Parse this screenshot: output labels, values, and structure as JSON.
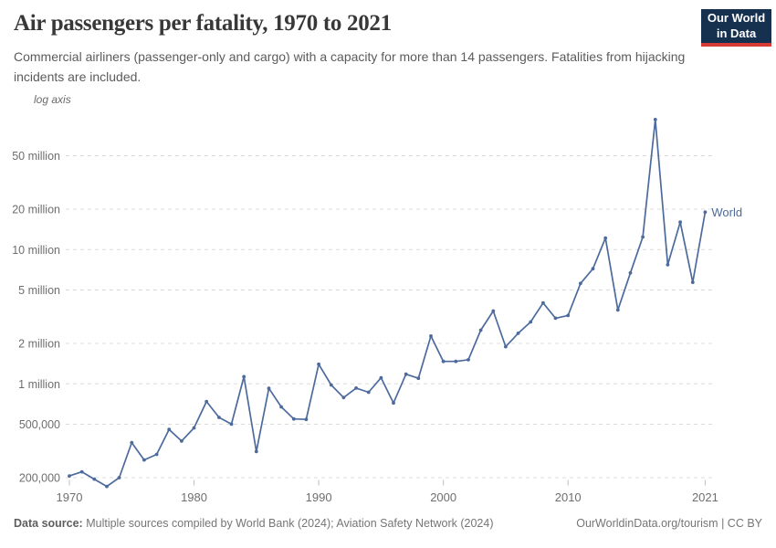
{
  "header": {
    "title": "Air passengers per fatality, 1970 to 2021",
    "subtitle": "Commercial airliners (passenger-only and cargo) with a capacity for more than 14 passengers. Fatalities from hijacking incidents are included.",
    "logo": {
      "line1": "Our World",
      "line2": "in Data"
    }
  },
  "chart": {
    "axis_note": "log axis",
    "series_label": "World",
    "line_color": "#4c6a9c",
    "gridline_color": "#dcdcdc",
    "tick_label_color": "#6e6e6e"
  },
  "chart_data": {
    "type": "line",
    "title": "Air passengers per fatality, 1970 to 2021",
    "xlabel": "",
    "ylabel": "Air passengers per fatality",
    "y_scale": "log",
    "grid": "dashed-horizontal",
    "legend_position": "end-of-line",
    "x_range": [
      1969.5,
      2022
    ],
    "y_range": [
      150000,
      100000000
    ],
    "x_ticks": [
      "1970",
      "1980",
      "1990",
      "2000",
      "2010",
      "2021"
    ],
    "y_ticks": [
      {
        "label": "200,000",
        "value": 200000
      },
      {
        "label": "500,000",
        "value": 500000
      },
      {
        "label": "1 million",
        "value": 1000000
      },
      {
        "label": "2 million",
        "value": 2000000
      },
      {
        "label": "5 million",
        "value": 5000000
      },
      {
        "label": "10 million",
        "value": 10000000
      },
      {
        "label": "20 million",
        "value": 20000000
      },
      {
        "label": "50 million",
        "value": 50000000
      }
    ],
    "x": [
      1970,
      1971,
      1972,
      1973,
      1974,
      1975,
      1976,
      1977,
      1978,
      1979,
      1980,
      1981,
      1982,
      1983,
      1984,
      1985,
      1986,
      1987,
      1988,
      1989,
      1990,
      1991,
      1992,
      1993,
      1994,
      1995,
      1996,
      1997,
      1998,
      1999,
      2000,
      2001,
      2002,
      2003,
      2004,
      2005,
      2006,
      2007,
      2008,
      2009,
      2010,
      2011,
      2012,
      2013,
      2014,
      2015,
      2016,
      2017,
      2018,
      2019,
      2020,
      2021
    ],
    "series": [
      {
        "name": "World",
        "values": [
          206000,
          221000,
          195000,
          172000,
          200000,
          365000,
          271000,
          298000,
          457000,
          375000,
          470000,
          738000,
          562000,
          501000,
          1130000,
          313000,
          925000,
          673000,
          548000,
          543000,
          1400000,
          980000,
          790000,
          930000,
          865000,
          1110000,
          720000,
          1180000,
          1100000,
          2270000,
          1470000,
          1470000,
          1510000,
          2510000,
          3490000,
          1890000,
          2380000,
          2890000,
          4000000,
          3080000,
          3230000,
          5600000,
          7200000,
          12200000,
          3550000,
          6700000,
          12400000,
          93000000,
          7700000,
          16000000,
          5700000,
          19000000
        ]
      }
    ]
  },
  "footer": {
    "datasource_label": "Data source:",
    "datasource_text": " Multiple sources compiled by World Bank (2024); Aviation Safety Network (2024)",
    "rights": "OurWorldinData.org/tourism | CC BY"
  }
}
